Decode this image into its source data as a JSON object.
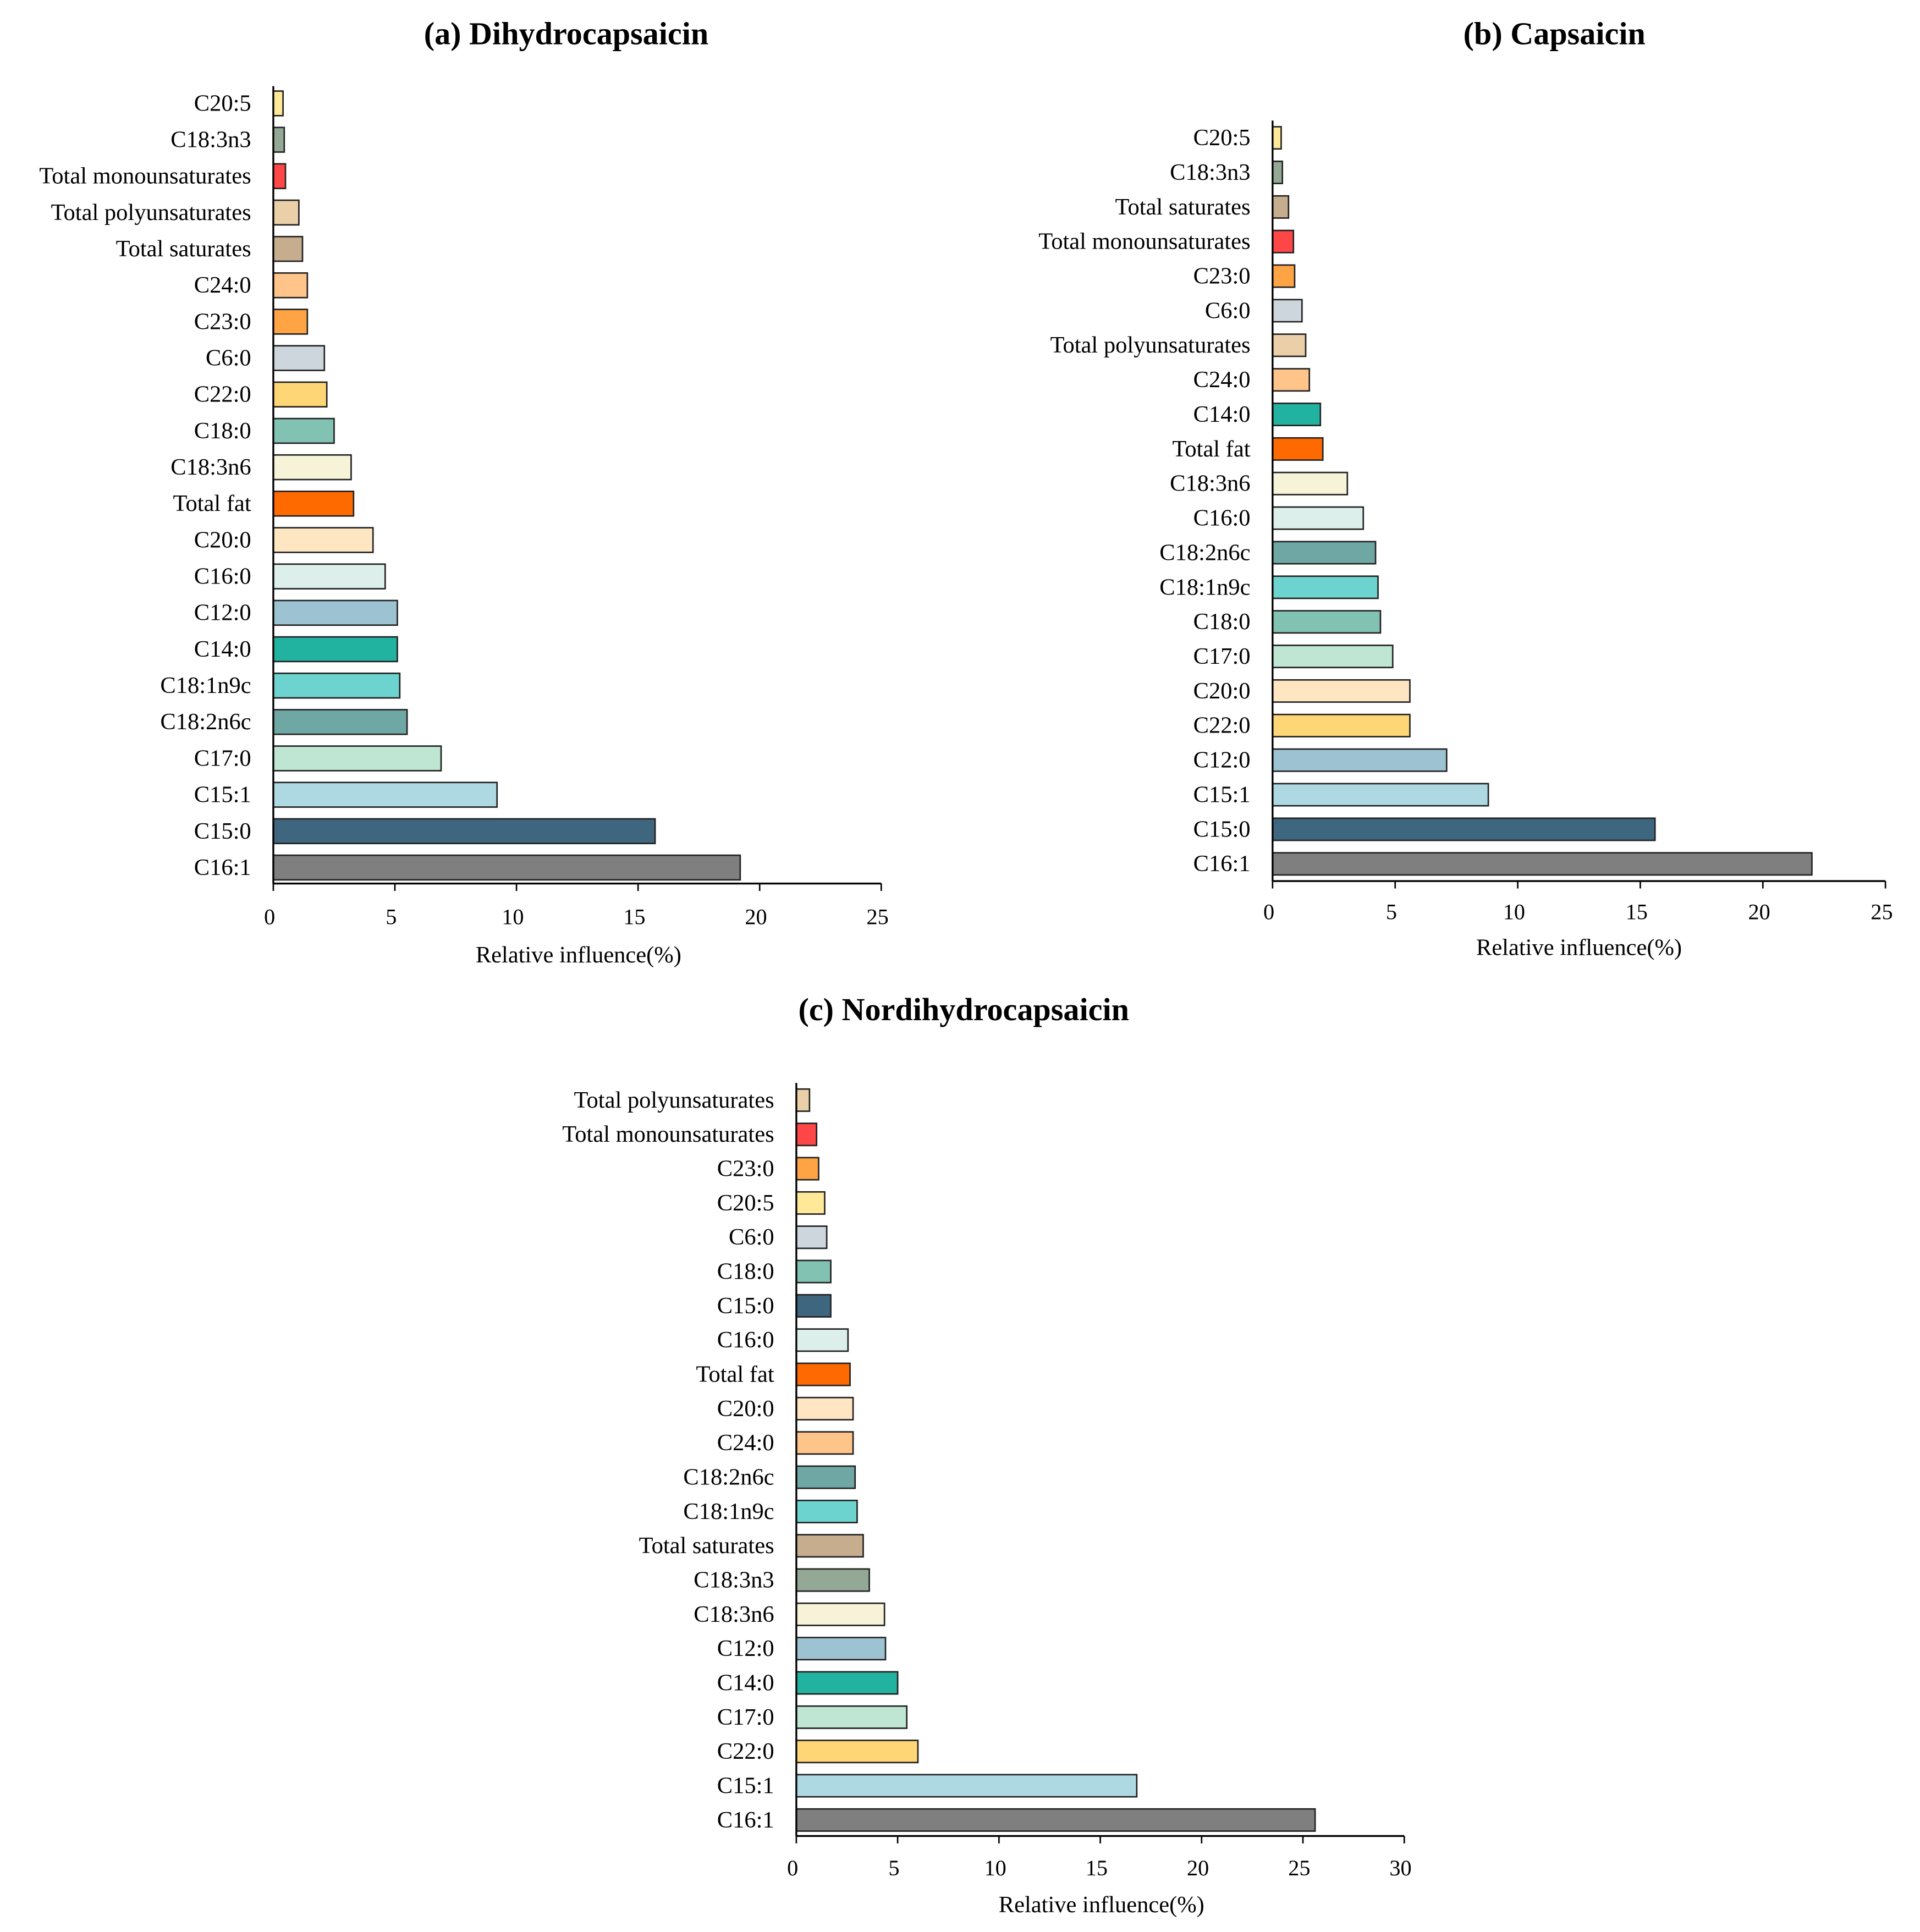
{
  "colors": {
    "C20:5": "#FFE998",
    "C18:3n3": "#93A895",
    "Total monounsaturates": "#FF4747",
    "Total polyunsaturates": "#EBCFA8",
    "Total saturates": "#C6AD8E",
    "C24:0": "#FFC48A",
    "C23:0": "#FFA445",
    "C6:0": "#CDD6DC",
    "C22:0": "#FFD675",
    "C18:0": "#82C2B2",
    "C18:3n6": "#F7F3D8",
    "Total fat": "#FF6A00",
    "C20:0": "#FFE6C2",
    "C16:0": "#DCEFEA",
    "C12:0": "#9DC3D3",
    "C14:0": "#22B3A0",
    "C18:1n9c": "#6CD3CE",
    "C18:2n6c": "#6FA7A5",
    "C17:0": "#BEE6D2",
    "C15:1": "#AED9E2",
    "C15:0": "#3F667F",
    "C16:1": "#7F7F7F"
  },
  "chart_data": [
    {
      "type": "bar",
      "orientation": "horizontal",
      "title": "(a) Dihydrocapsaicin",
      "xlabel": "Relative influence(%)",
      "ylabel": "",
      "xlim": [
        0,
        25
      ],
      "xticks": [
        "0",
        "5",
        "10",
        "15",
        "20",
        "25"
      ],
      "categories": [
        "C20:5",
        "C18:3n3",
        "Total monounsaturates",
        "Total polyunsaturates",
        "Total saturates",
        "C24:0",
        "C23:0",
        "C6:0",
        "C22:0",
        "C18:0",
        "C18:3n6",
        "Total fat",
        "C20:0",
        "C16:0",
        "C12:0",
        "C14:0",
        "C18:1n9c",
        "C18:2n6c",
        "C17:0",
        "C15:1",
        "C15:0",
        "C16:1"
      ],
      "values": [
        0.4,
        0.45,
        0.5,
        1.05,
        1.2,
        1.4,
        1.4,
        2.1,
        2.2,
        2.5,
        3.2,
        3.3,
        4.1,
        4.6,
        5.1,
        5.1,
        5.2,
        5.5,
        6.9,
        9.2,
        15.7,
        19.2
      ]
    },
    {
      "type": "bar",
      "orientation": "horizontal",
      "title": "(b) Capsaicin",
      "xlabel": "Relative influence(%)",
      "ylabel": "",
      "xlim": [
        0,
        25
      ],
      "xticks": [
        "0",
        "5",
        "10",
        "15",
        "20",
        "25"
      ],
      "categories": [
        "C20:5",
        "C18:3n3",
        "Total saturates",
        "Total monounsaturates",
        "C23:0",
        "C6:0",
        "Total polyunsaturates",
        "C24:0",
        "C14:0",
        "Total fat",
        "C18:3n6",
        "C16:0",
        "C18:2n6c",
        "C18:1n9c",
        "C18:0",
        "C17:0",
        "C20:0",
        "C22:0",
        "C12:0",
        "C15:1",
        "C15:0",
        "C16:1"
      ],
      "values": [
        0.35,
        0.4,
        0.65,
        0.85,
        0.9,
        1.2,
        1.35,
        1.5,
        1.95,
        2.05,
        3.05,
        3.7,
        4.2,
        4.3,
        4.4,
        4.9,
        5.6,
        5.6,
        7.1,
        8.8,
        15.6,
        22.0
      ]
    },
    {
      "type": "bar",
      "orientation": "horizontal",
      "title": "(c) Nordihydrocapsaicin",
      "xlabel": "Relative influence(%)",
      "ylabel": "",
      "xlim": [
        0,
        30
      ],
      "xticks": [
        "0",
        "5",
        "10",
        "15",
        "20",
        "25",
        "30"
      ],
      "categories": [
        "Total polyunsaturates",
        "Total monounsaturates",
        "C23:0",
        "C20:5",
        "C6:0",
        "C18:0",
        "C15:0",
        "C16:0",
        "Total fat",
        "C20:0",
        "C24:0",
        "C18:2n6c",
        "C18:1n9c",
        "Total saturates",
        "C18:3n3",
        "C18:3n6",
        "C12:0",
        "C14:0",
        "C17:0",
        "C22:0",
        "C15:1",
        "C16:1"
      ],
      "values": [
        0.65,
        1.0,
        1.1,
        1.4,
        1.5,
        1.7,
        1.7,
        2.55,
        2.65,
        2.8,
        2.8,
        2.9,
        3.0,
        3.3,
        3.6,
        4.35,
        4.4,
        5.0,
        5.45,
        6.0,
        16.8,
        25.6
      ]
    }
  ]
}
